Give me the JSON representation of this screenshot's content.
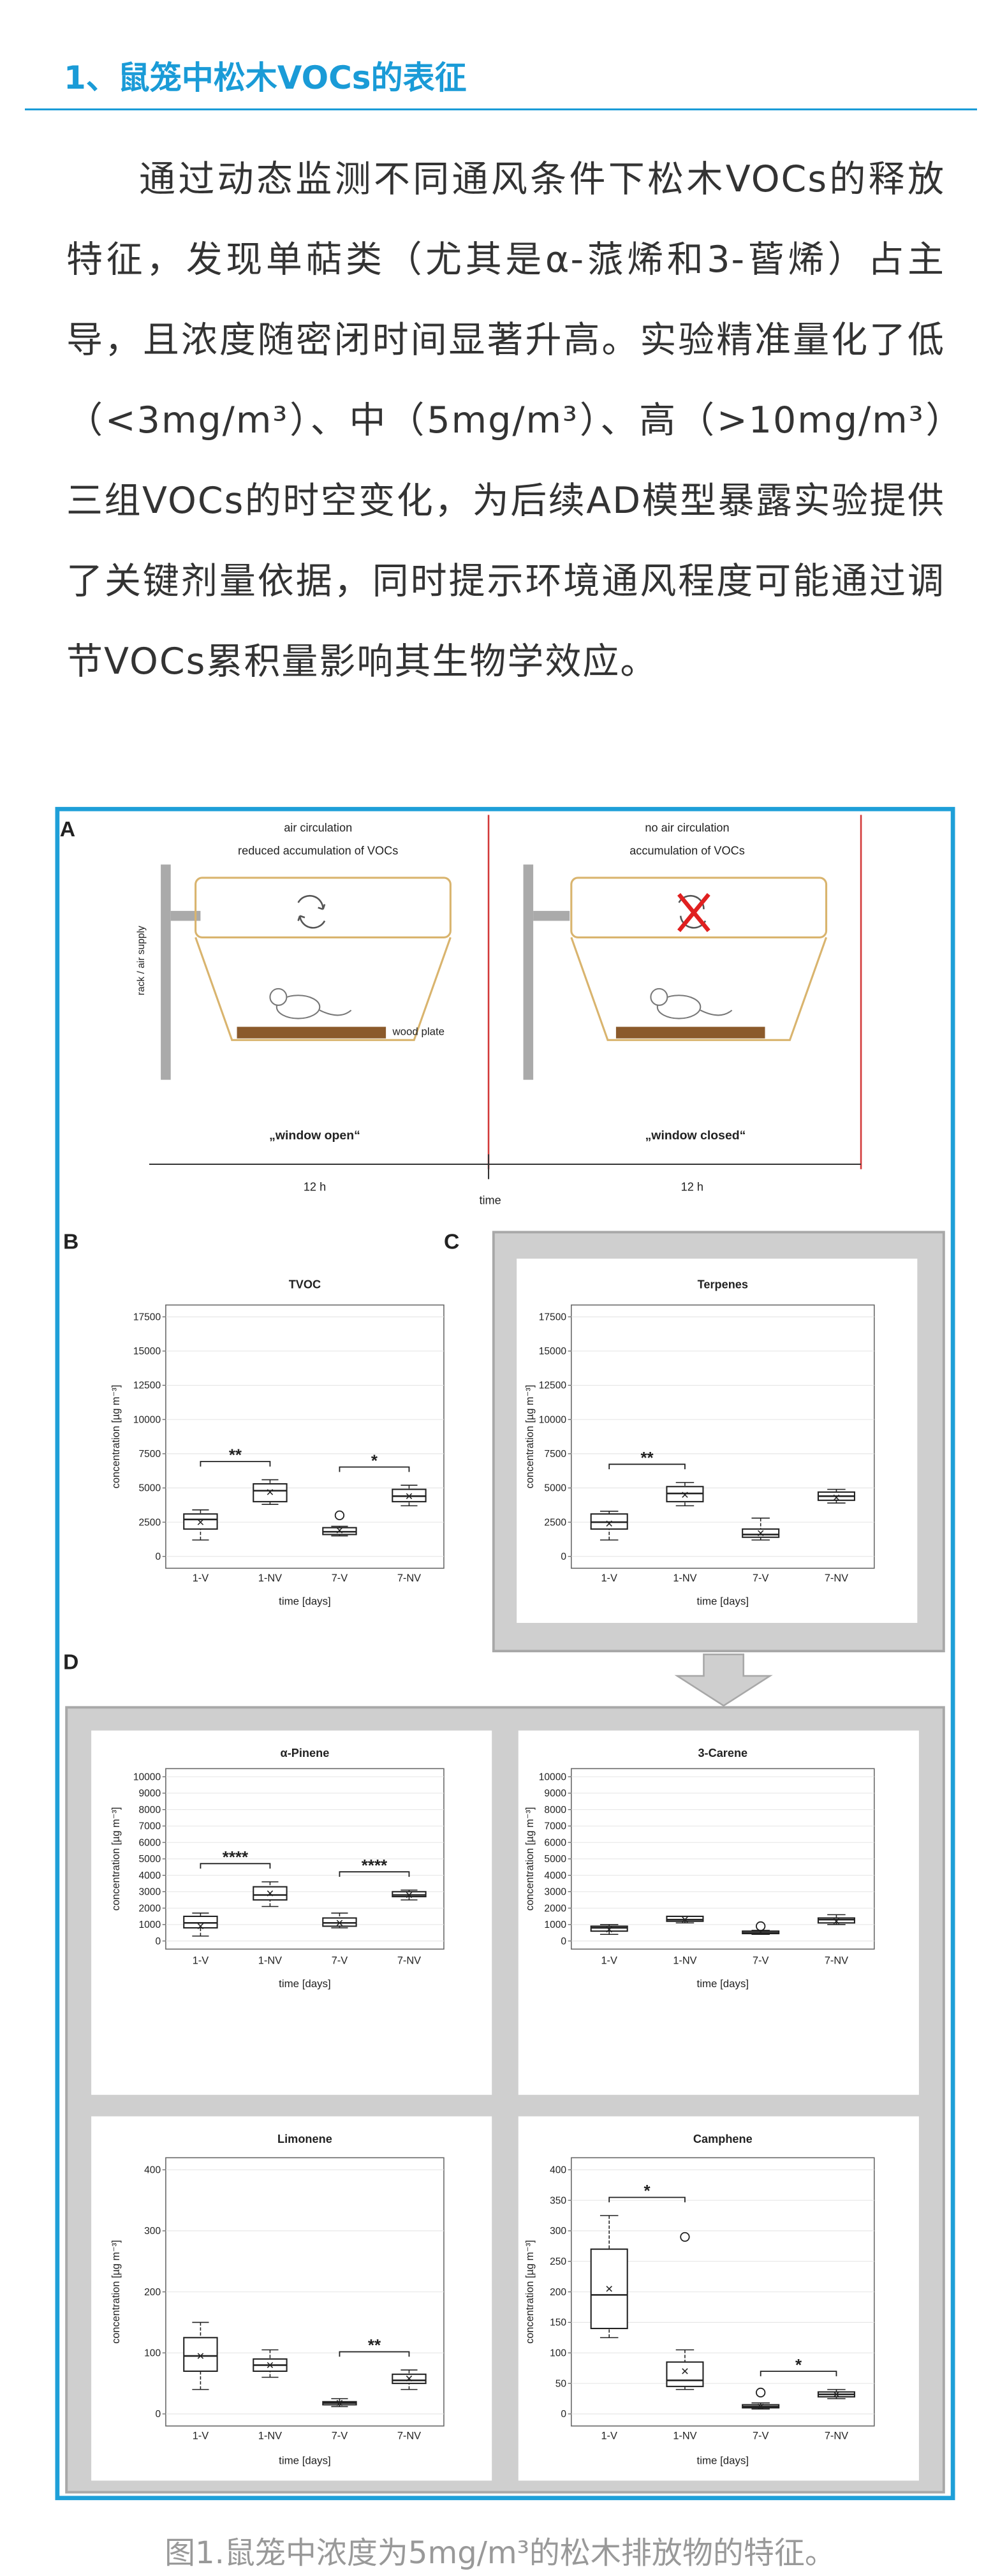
{
  "heading": "1、鼠笼中松木VOCs的表征",
  "paragraph": "通过动态监测不同通风条件下松木VOCs的释放特征，发现单萜类（尤其是α-蒎烯和3-蒈烯）占主导，且浓度随密闭时间显著升高。实验精准量化了低（<3mg/m³）、中（5mg/m³）、高（>10mg/m³）三组VOCs的时空变化，为后续AD模型暴露实验提供了关键剂量依据，同时提示环境通风程度可能通过调节VOCs累积量影响其生物学效应。",
  "figure": {
    "panel_labels": [
      "A",
      "B",
      "C",
      "D"
    ],
    "panel_a": {
      "left_title": [
        "air circulation",
        "reduced accumulation of VOCs"
      ],
      "right_title": [
        "no air circulation",
        "accumulation of VOCs"
      ],
      "rack_label": "rack / air supply",
      "plate_label": "wood plate",
      "left_caption": "„window open“",
      "right_caption": "„window closed“",
      "left_duration": "12 h",
      "time_label": "time",
      "right_duration": "12 h"
    },
    "caption": "图1.鼠笼中浓度为5mg/m³的松木排放物的特征。"
  },
  "chart_data": [
    {
      "type": "box",
      "title": "TVOC",
      "y_label": "concentration [µg m⁻³]",
      "x_label": "time [days]",
      "categories": [
        "1-V",
        "1-NV",
        "7-V",
        "7-NV"
      ],
      "ylim": [
        0,
        17500
      ],
      "yticks": [
        0,
        2500,
        5000,
        7500,
        10000,
        12500,
        15000,
        17500
      ],
      "grid": true,
      "boxes": [
        {
          "min": 1200,
          "q1": 2000,
          "median": 2700,
          "q3": 3100,
          "max": 3400,
          "mean": 2500,
          "outliers": []
        },
        {
          "min": 3800,
          "q1": 4000,
          "median": 4800,
          "q3": 5300,
          "max": 5600,
          "mean": 4700,
          "outliers": []
        },
        {
          "min": 1500,
          "q1": 1600,
          "median": 1800,
          "q3": 2100,
          "max": 2200,
          "mean": 1900,
          "outliers": [
            3000
          ]
        },
        {
          "min": 3700,
          "q1": 4000,
          "median": 4400,
          "q3": 4900,
          "max": 5200,
          "mean": 4400,
          "outliers": []
        }
      ],
      "annotations": [
        {
          "text": "**",
          "from": 0,
          "to": 1
        },
        {
          "text": "*",
          "from": 2,
          "to": 3
        }
      ]
    },
    {
      "type": "box",
      "title": "Terpenes",
      "y_label": "concentration [µg m⁻³]",
      "x_label": "time [days]",
      "categories": [
        "1-V",
        "1-NV",
        "7-V",
        "7-NV"
      ],
      "ylim": [
        0,
        17500
      ],
      "yticks": [
        0,
        2500,
        5000,
        7500,
        10000,
        12500,
        15000,
        17500
      ],
      "grid": true,
      "boxes": [
        {
          "min": 1200,
          "q1": 2000,
          "median": 2500,
          "q3": 3100,
          "max": 3300,
          "mean": 2400,
          "outliers": []
        },
        {
          "min": 3700,
          "q1": 4000,
          "median": 4600,
          "q3": 5100,
          "max": 5400,
          "mean": 4500,
          "outliers": []
        },
        {
          "min": 1200,
          "q1": 1400,
          "median": 1600,
          "q3": 2000,
          "max": 2800,
          "mean": 1700,
          "outliers": []
        },
        {
          "min": 3900,
          "q1": 4100,
          "median": 4400,
          "q3": 4700,
          "max": 4900,
          "mean": 4300,
          "outliers": []
        }
      ],
      "annotations": [
        {
          "text": "**",
          "from": 0,
          "to": 1
        }
      ]
    },
    {
      "type": "box",
      "title": "α-Pinene",
      "y_label": "concentration [µg m⁻³]",
      "x_label": "time [days]",
      "categories": [
        "1-V",
        "1-NV",
        "7-V",
        "7-NV"
      ],
      "ylim": [
        0,
        10000
      ],
      "yticks": [
        0,
        1000,
        2000,
        3000,
        4000,
        5000,
        6000,
        7000,
        8000,
        9000,
        10000
      ],
      "grid": true,
      "boxes": [
        {
          "min": 300,
          "q1": 800,
          "median": 1100,
          "q3": 1500,
          "max": 1700,
          "mean": 900,
          "outliers": []
        },
        {
          "min": 2100,
          "q1": 2500,
          "median": 2800,
          "q3": 3300,
          "max": 3600,
          "mean": 2900,
          "outliers": []
        },
        {
          "min": 800,
          "q1": 900,
          "median": 1100,
          "q3": 1400,
          "max": 1700,
          "mean": 1100,
          "outliers": []
        },
        {
          "min": 2500,
          "q1": 2700,
          "median": 2800,
          "q3": 3000,
          "max": 3100,
          "mean": 2800,
          "outliers": []
        }
      ],
      "annotations": [
        {
          "text": "****",
          "from": 0,
          "to": 1
        },
        {
          "text": "****",
          "from": 2,
          "to": 3
        }
      ]
    },
    {
      "type": "box",
      "title": "3-Carene",
      "y_label": "concentration [µg m⁻³]",
      "x_label": "time [days]",
      "categories": [
        "1-V",
        "1-NV",
        "7-V",
        "7-NV"
      ],
      "ylim": [
        0,
        10000
      ],
      "yticks": [
        0,
        1000,
        2000,
        3000,
        4000,
        5000,
        6000,
        7000,
        8000,
        9000,
        10000
      ],
      "grid": true,
      "boxes": [
        {
          "min": 400,
          "q1": 600,
          "median": 800,
          "q3": 900,
          "max": 1000,
          "mean": 700,
          "outliers": []
        },
        {
          "min": 1100,
          "q1": 1200,
          "median": 1300,
          "q3": 1500,
          "max": 1500,
          "mean": 1300,
          "outliers": []
        },
        {
          "min": 400,
          "q1": 450,
          "median": 500,
          "q3": 600,
          "max": 650,
          "mean": 550,
          "outliers": [
            900
          ]
        },
        {
          "min": 1000,
          "q1": 1100,
          "median": 1300,
          "q3": 1400,
          "max": 1600,
          "mean": 1200,
          "outliers": []
        }
      ],
      "annotations": []
    },
    {
      "type": "box",
      "title": "Limonene",
      "y_label": "concentration [µg m⁻³]",
      "x_label": "time [days]",
      "categories": [
        "1-V",
        "1-NV",
        "7-V",
        "7-NV"
      ],
      "ylim": [
        0,
        400
      ],
      "yticks": [
        0,
        100,
        200,
        300,
        400
      ],
      "grid": true,
      "boxes": [
        {
          "min": 40,
          "q1": 70,
          "median": 95,
          "q3": 125,
          "max": 150,
          "mean": 95,
          "outliers": []
        },
        {
          "min": 60,
          "q1": 70,
          "median": 80,
          "q3": 90,
          "max": 105,
          "mean": 80,
          "outliers": []
        },
        {
          "min": 12,
          "q1": 15,
          "median": 18,
          "q3": 20,
          "max": 25,
          "mean": 18,
          "outliers": []
        },
        {
          "min": 40,
          "q1": 50,
          "median": 55,
          "q3": 65,
          "max": 72,
          "mean": 58,
          "outliers": []
        }
      ],
      "annotations": [
        {
          "text": "**",
          "from": 2,
          "to": 3
        }
      ]
    },
    {
      "type": "box",
      "title": "Camphene",
      "y_label": "concentration [µg m⁻³]",
      "x_label": "time [days]",
      "categories": [
        "1-V",
        "1-NV",
        "7-V",
        "7-NV"
      ],
      "ylim": [
        0,
        400
      ],
      "yticks": [
        0,
        50,
        100,
        150,
        200,
        250,
        300,
        350,
        400
      ],
      "grid": true,
      "boxes": [
        {
          "min": 125,
          "q1": 140,
          "median": 195,
          "q3": 270,
          "max": 325,
          "mean": 205,
          "outliers": []
        },
        {
          "min": 40,
          "q1": 45,
          "median": 55,
          "q3": 85,
          "max": 105,
          "mean": 70,
          "outliers": [
            290
          ]
        },
        {
          "min": 8,
          "q1": 10,
          "median": 12,
          "q3": 15,
          "max": 18,
          "mean": 12,
          "outliers": [
            35
          ]
        },
        {
          "min": 25,
          "q1": 28,
          "median": 32,
          "q3": 36,
          "max": 40,
          "mean": 32,
          "outliers": []
        }
      ],
      "annotations": [
        {
          "text": "*",
          "from": 0,
          "to": 1
        },
        {
          "text": "*",
          "from": 2,
          "to": 3
        }
      ]
    }
  ]
}
